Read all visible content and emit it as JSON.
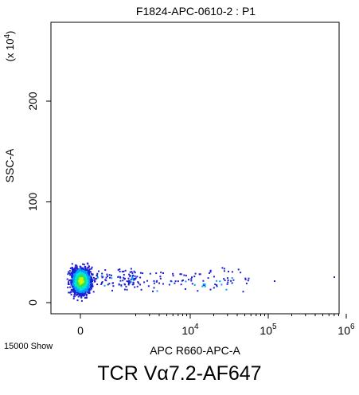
{
  "chart_data": {
    "type": "scatter",
    "title": "F1824-APC-0610-2 : P1",
    "xlabel": "APC R660-APC-A",
    "ylabel": "SSC-A",
    "y_multiplier": "(x 10",
    "y_multiplier_exp": "4",
    "y_multiplier_close": ")",
    "x_scale": "biexponential",
    "xlim": [
      -300,
      1000000
    ],
    "ylim": [
      -8000,
      262144
    ],
    "x_ticks": [
      {
        "value": 0,
        "base": "0",
        "exp": ""
      },
      {
        "value": 10000,
        "base": "10",
        "exp": "4"
      },
      {
        "value": 100000,
        "base": "10",
        "exp": "5"
      },
      {
        "value": 1000000,
        "base": "10",
        "exp": "6"
      }
    ],
    "y_ticks": [
      {
        "value": 0,
        "label": "0"
      },
      {
        "value": 1000000,
        "label": "100"
      },
      {
        "value": 2000000,
        "label": "200"
      }
    ],
    "y_ticks_units_note": "labels are in units of 10^4",
    "event_count_label": "15000 Show",
    "grid": false,
    "legend": "none",
    "density_colors": [
      "#1e1ed2",
      "#00a0ff",
      "#00e8d8",
      "#30e060",
      "#c8ff00"
    ],
    "populations": [
      {
        "name": "negative cluster",
        "x_center": 0,
        "x_spread": 120,
        "y_center": 220000,
        "y_spread": 70000,
        "events": 1400
      },
      {
        "name": "positive tail",
        "x_center": 9000,
        "x_spread": 0.55,
        "y_center": 220000,
        "y_spread": 80000,
        "events": 230
      }
    ]
  },
  "caption": "TCR Vα7.2-AF647"
}
